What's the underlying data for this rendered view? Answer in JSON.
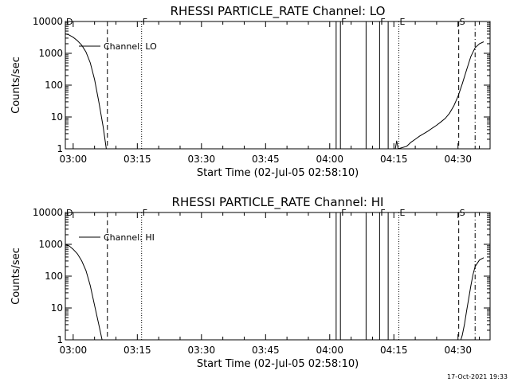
{
  "chart_data": [
    {
      "type": "line",
      "title": "RHESSI PARTICLE_RATE Channel: LO",
      "xlabel": "Start Time (02-Jul-05 02:58:10)",
      "ylabel": "Counts/sec",
      "yscale": "log",
      "ylim": [
        1,
        10000
      ],
      "xlim": [
        "02:58:10",
        "04:37:30"
      ],
      "x_ticks": [
        "03:00",
        "03:15",
        "03:30",
        "03:45",
        "04:00",
        "04:15",
        "04:30"
      ],
      "y_ticks": [
        "1",
        "10",
        "100",
        "1000",
        "10000"
      ],
      "legend": {
        "entries": [
          "Channel: LO"
        ],
        "placement": "top-left"
      },
      "series": [
        {
          "name": "Channel: LO",
          "points": [
            [
              "02:58:10",
              4100
            ],
            [
              "02:59:00",
              3800
            ],
            [
              "03:00:00",
              3200
            ],
            [
              "03:01:00",
              2500
            ],
            [
              "03:02:00",
              1800
            ],
            [
              "03:03:00",
              1100
            ],
            [
              "03:04:00",
              500
            ],
            [
              "03:05:00",
              150
            ],
            [
              "03:06:00",
              30
            ],
            [
              "03:07:00",
              5
            ],
            [
              "03:07:45",
              1
            ]
          ]
        },
        {
          "name": "Channel: LO",
          "points": [
            [
              "04:15:20",
              1
            ],
            [
              "04:15:40",
              1.8
            ],
            [
              "04:16:00",
              1
            ],
            [
              "04:18:00",
              1.2
            ],
            [
              "04:19:00",
              1.6
            ],
            [
              "04:20:00",
              2
            ],
            [
              "04:21:00",
              2.5
            ],
            [
              "04:22:00",
              3
            ],
            [
              "04:23:00",
              3.6
            ],
            [
              "04:24:00",
              4.5
            ],
            [
              "04:25:00",
              5.5
            ],
            [
              "04:26:00",
              7
            ],
            [
              "04:27:00",
              9
            ],
            [
              "04:28:00",
              13
            ],
            [
              "04:29:00",
              22
            ],
            [
              "04:30:00",
              45
            ],
            [
              "04:31:00",
              110
            ],
            [
              "04:32:00",
              300
            ],
            [
              "04:33:00",
              800
            ],
            [
              "04:34:00",
              1500
            ],
            [
              "04:35:00",
              2000
            ],
            [
              "04:36:00",
              2300
            ]
          ]
        }
      ],
      "markers": [
        {
          "label": "D",
          "time": "02:58:10",
          "style": "solid"
        },
        {
          "label": "",
          "time": "03:08:00",
          "style": "dashed"
        },
        {
          "label": "F",
          "time": "03:16:00",
          "style": "dotted"
        },
        {
          "label": "",
          "time": "04:01:30",
          "style": "solid"
        },
        {
          "label": "F",
          "time": "04:02:30",
          "style": "solid"
        },
        {
          "label": "",
          "time": "04:08:30",
          "style": "solid"
        },
        {
          "label": "F",
          "time": "04:11:40",
          "style": "solid"
        },
        {
          "label": "",
          "time": "04:13:40",
          "style": "solid"
        },
        {
          "label": "E",
          "time": "04:16:10",
          "style": "dotted"
        },
        {
          "label": "S",
          "time": "04:30:10",
          "style": "dashed"
        },
        {
          "label": "",
          "time": "04:34:00",
          "style": "dashdot"
        }
      ]
    },
    {
      "type": "line",
      "title": "RHESSI PARTICLE_RATE Channel: HI",
      "xlabel": "Start Time (02-Jul-05 02:58:10)",
      "ylabel": "Counts/sec",
      "yscale": "log",
      "ylim": [
        1,
        10000
      ],
      "xlim": [
        "02:58:10",
        "04:37:30"
      ],
      "x_ticks": [
        "03:00",
        "03:15",
        "03:30",
        "03:45",
        "04:00",
        "04:15",
        "04:30"
      ],
      "y_ticks": [
        "1",
        "10",
        "100",
        "1000",
        "10000"
      ],
      "legend": {
        "entries": [
          "Channel: HI"
        ],
        "placement": "top-left"
      },
      "series": [
        {
          "name": "Channel: HI",
          "points": [
            [
              "02:58:10",
              1000
            ],
            [
              "02:59:00",
              900
            ],
            [
              "03:00:00",
              700
            ],
            [
              "03:01:00",
              500
            ],
            [
              "03:02:00",
              300
            ],
            [
              "03:03:00",
              150
            ],
            [
              "03:04:00",
              50
            ],
            [
              "03:05:00",
              12
            ],
            [
              "03:06:00",
              3
            ],
            [
              "03:06:45",
              1
            ]
          ]
        },
        {
          "name": "Channel: HI",
          "points": [
            [
              "04:30:40",
              1
            ],
            [
              "04:31:00",
              1.4
            ],
            [
              "04:31:30",
              3
            ],
            [
              "04:32:00",
              8
            ],
            [
              "04:32:30",
              20
            ],
            [
              "04:33:00",
              50
            ],
            [
              "04:33:30",
              110
            ],
            [
              "04:34:00",
              200
            ],
            [
              "04:35:00",
              320
            ],
            [
              "04:36:00",
              380
            ]
          ]
        }
      ],
      "markers": [
        {
          "label": "D",
          "time": "02:58:10",
          "style": "solid"
        },
        {
          "label": "",
          "time": "03:08:00",
          "style": "dashed"
        },
        {
          "label": "F",
          "time": "03:16:00",
          "style": "dotted"
        },
        {
          "label": "",
          "time": "04:01:30",
          "style": "solid"
        },
        {
          "label": "F",
          "time": "04:02:30",
          "style": "solid"
        },
        {
          "label": "",
          "time": "04:08:30",
          "style": "solid"
        },
        {
          "label": "F",
          "time": "04:11:40",
          "style": "solid"
        },
        {
          "label": "",
          "time": "04:13:40",
          "style": "solid"
        },
        {
          "label": "E",
          "time": "04:16:10",
          "style": "dotted"
        },
        {
          "label": "S",
          "time": "04:30:10",
          "style": "dashed"
        },
        {
          "label": "",
          "time": "04:34:00",
          "style": "dashdot"
        }
      ]
    }
  ],
  "footer": {
    "timestamp": "17-Oct-2021 19:33"
  }
}
